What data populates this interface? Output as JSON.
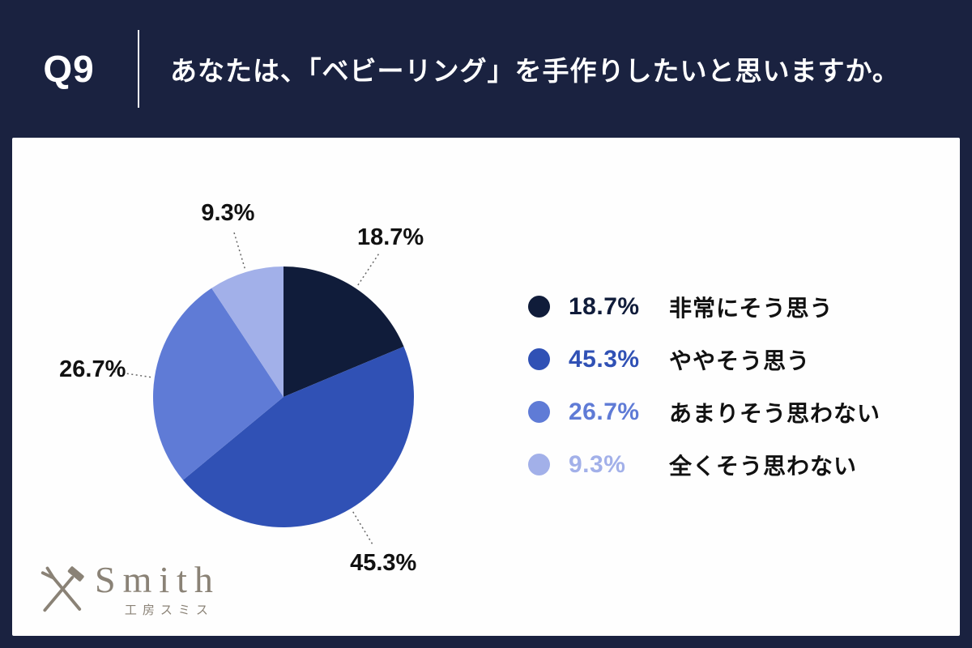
{
  "header": {
    "question_number": "Q9",
    "title": "あなたは、「ベビーリング」を手作りしたいと思いますか。"
  },
  "chart_data": {
    "type": "pie",
    "title": "あなたは、「ベビーリング」を手作りしたいと思いますか。",
    "categories": [
      "非常にそう思う",
      "ややそう思う",
      "あまりそう思わない",
      "全くそう思わない"
    ],
    "values": [
      18.7,
      45.3,
      26.7,
      9.3
    ],
    "labels": [
      "18.7%",
      "45.3%",
      "26.7%",
      "9.3%"
    ],
    "colors": [
      "#101c3a",
      "#3051b5",
      "#5f7bd6",
      "#a2b0e9"
    ],
    "start_angle_deg": 0,
    "direction": "clockwise",
    "legend_position": "right",
    "callout_line_color": "#666666",
    "label_text_color": "#111111"
  },
  "logo": {
    "name": "Smith",
    "subtitle": "工房スミス",
    "color": "#8a8276"
  },
  "colors": {
    "background_navy": "#1a2240",
    "card_white": "#fefefe",
    "header_text": "#ffffff"
  }
}
